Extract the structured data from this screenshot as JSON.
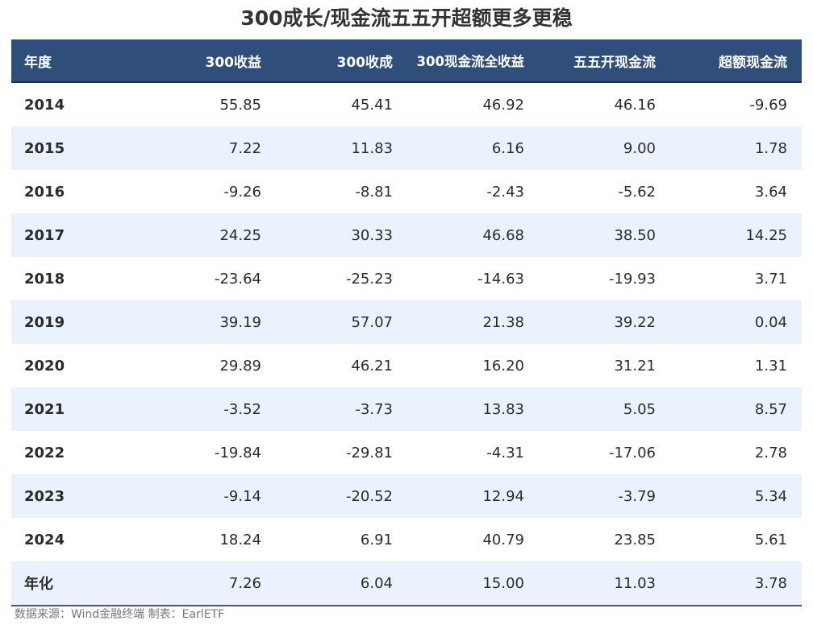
{
  "title": "300成长/现金流五五开超额更多更稳",
  "source": "数据来源：Wind金融终端 制表：EarlETF",
  "chart_data": {
    "type": "table",
    "columns": [
      "年度",
      "300收益",
      "300收成",
      "300现金流全收益",
      "五五开现金流",
      "超额现金流"
    ],
    "rows": [
      [
        "2014",
        "55.85",
        "45.41",
        "46.92",
        "46.16",
        "-9.69"
      ],
      [
        "2015",
        "7.22",
        "11.83",
        "6.16",
        "9.00",
        "1.78"
      ],
      [
        "2016",
        "-9.26",
        "-8.81",
        "-2.43",
        "-5.62",
        "3.64"
      ],
      [
        "2017",
        "24.25",
        "30.33",
        "46.68",
        "38.50",
        "14.25"
      ],
      [
        "2018",
        "-23.64",
        "-25.23",
        "-14.63",
        "-19.93",
        "3.71"
      ],
      [
        "2019",
        "39.19",
        "57.07",
        "21.38",
        "39.22",
        "0.04"
      ],
      [
        "2020",
        "29.89",
        "46.21",
        "16.20",
        "31.21",
        "1.31"
      ],
      [
        "2021",
        "-3.52",
        "-3.73",
        "13.83",
        "5.05",
        "8.57"
      ],
      [
        "2022",
        "-19.84",
        "-29.81",
        "-4.31",
        "-17.06",
        "2.78"
      ],
      [
        "2023",
        "-9.14",
        "-20.52",
        "12.94",
        "-3.79",
        "5.34"
      ],
      [
        "2024",
        "18.24",
        "6.91",
        "40.79",
        "23.85",
        "5.61"
      ],
      [
        "年化",
        "7.26",
        "6.04",
        "15.00",
        "11.03",
        "3.78"
      ]
    ]
  },
  "colors": {
    "header_bg": "#2f4f7a",
    "header_text": "#ffffff",
    "alt_row_bg": "#eaf3fd"
  }
}
